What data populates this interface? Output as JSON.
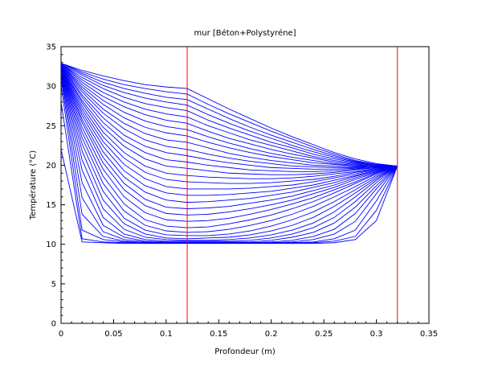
{
  "chart_data": {
    "type": "line",
    "title": "mur [Béton+Polystyréne]",
    "xlabel": "Profondeur (m)",
    "ylabel": "Température (°C)",
    "xlim": [
      0,
      0.35
    ],
    "ylim": [
      0,
      35
    ],
    "x_ticks": [
      "0",
      "0.05",
      "0.1",
      "0.15",
      "0.2",
      "0.25",
      "0.3",
      "0.35"
    ],
    "y_ticks": [
      "0",
      "5",
      "10",
      "15",
      "20",
      "25",
      "30",
      "35"
    ],
    "grid": false,
    "legend": "none",
    "series_color": "#0000ff",
    "vertical_lines": [
      {
        "x": 0.12,
        "color": "#ff0000"
      },
      {
        "x": 0.32,
        "color": "#ff0000"
      }
    ],
    "series_count": 34,
    "x_points": [
      0,
      0.02,
      0.04,
      0.06,
      0.08,
      0.1,
      0.12,
      0.14,
      0.16,
      0.18,
      0.2,
      0.22,
      0.24,
      0.26,
      0.28,
      0.3,
      0.32
    ],
    "series": [
      {
        "values": [
          32.9,
          32.0,
          31.3,
          30.7,
          30.2,
          29.9,
          29.7,
          28.4,
          27.1,
          25.9,
          24.7,
          23.6,
          22.6,
          21.6,
          20.8,
          20.2,
          19.9
        ]
      },
      {
        "values": [
          32.9,
          31.8,
          30.9,
          30.2,
          29.7,
          29.3,
          29.0,
          27.7,
          26.5,
          25.4,
          24.3,
          23.3,
          22.3,
          21.4,
          20.6,
          20.1,
          19.9
        ]
      },
      {
        "values": [
          32.9,
          31.6,
          30.5,
          29.7,
          29.1,
          28.6,
          28.3,
          27.1,
          25.9,
          24.8,
          23.8,
          22.9,
          22.0,
          21.2,
          20.5,
          20.1,
          19.9
        ]
      },
      {
        "values": [
          32.8,
          31.4,
          30.1,
          29.2,
          28.5,
          28.0,
          27.6,
          26.4,
          25.3,
          24.3,
          23.4,
          22.5,
          21.7,
          21.0,
          20.4,
          20.0,
          19.9
        ]
      },
      {
        "values": [
          32.8,
          31.1,
          29.7,
          28.6,
          27.8,
          27.3,
          26.9,
          25.7,
          24.7,
          23.8,
          22.9,
          22.2,
          21.4,
          20.8,
          20.3,
          20.0,
          19.9
        ]
      },
      {
        "values": [
          32.8,
          30.8,
          29.2,
          28.0,
          27.1,
          26.5,
          26.1,
          25.0,
          24.1,
          23.2,
          22.5,
          21.8,
          21.1,
          20.6,
          20.2,
          20.0,
          19.9
        ]
      },
      {
        "values": [
          32.8,
          30.5,
          28.7,
          27.4,
          26.4,
          25.7,
          25.3,
          24.3,
          23.4,
          22.7,
          22.0,
          21.4,
          20.9,
          20.4,
          20.1,
          19.9,
          19.9
        ]
      },
      {
        "values": [
          32.7,
          30.2,
          28.2,
          26.7,
          25.6,
          24.9,
          24.5,
          23.6,
          22.8,
          22.1,
          21.5,
          21.0,
          20.6,
          20.2,
          20.0,
          19.9,
          19.9
        ]
      },
      {
        "values": [
          32.7,
          29.9,
          27.7,
          26.0,
          24.8,
          24.1,
          23.7,
          22.9,
          22.2,
          21.6,
          21.1,
          20.7,
          20.3,
          20.1,
          19.9,
          19.9,
          19.9
        ]
      },
      {
        "values": [
          32.7,
          29.6,
          27.1,
          25.3,
          24.0,
          23.2,
          22.9,
          22.2,
          21.5,
          21.0,
          20.6,
          20.3,
          20.0,
          19.9,
          19.8,
          19.9,
          19.9
        ]
      },
      {
        "values": [
          32.6,
          29.3,
          26.6,
          24.6,
          23.2,
          22.4,
          22.0,
          21.4,
          20.9,
          20.5,
          20.2,
          19.9,
          19.8,
          19.7,
          19.7,
          19.8,
          19.9
        ]
      },
      {
        "values": [
          32.6,
          28.9,
          26.0,
          23.8,
          22.4,
          21.6,
          21.2,
          20.7,
          20.3,
          20.0,
          19.7,
          19.6,
          19.5,
          19.5,
          19.6,
          19.8,
          19.9
        ]
      },
      {
        "values": [
          32.6,
          28.6,
          25.4,
          23.1,
          21.6,
          20.7,
          20.4,
          20.0,
          19.7,
          19.4,
          19.3,
          19.2,
          19.2,
          19.3,
          19.5,
          19.7,
          19.9
        ]
      },
      {
        "values": [
          32.5,
          28.2,
          24.8,
          22.4,
          20.8,
          19.9,
          19.6,
          19.3,
          19.0,
          18.9,
          18.8,
          18.8,
          18.9,
          19.1,
          19.4,
          19.7,
          19.9
        ]
      },
      {
        "values": [
          32.5,
          27.9,
          24.2,
          21.6,
          19.9,
          19.0,
          18.7,
          18.5,
          18.4,
          18.3,
          18.3,
          18.4,
          18.6,
          18.9,
          19.2,
          19.6,
          19.9
        ]
      },
      {
        "values": [
          32.5,
          27.5,
          23.6,
          20.9,
          19.1,
          18.2,
          17.9,
          17.8,
          17.7,
          17.7,
          17.8,
          18.0,
          18.2,
          18.6,
          19.1,
          19.5,
          19.9
        ]
      },
      {
        "values": [
          32.4,
          27.1,
          23.0,
          20.1,
          18.3,
          17.3,
          17.0,
          17.0,
          17.0,
          17.1,
          17.3,
          17.5,
          17.9,
          18.4,
          18.9,
          19.5,
          19.9
        ]
      },
      {
        "values": [
          32.4,
          26.7,
          22.4,
          19.3,
          17.4,
          16.5,
          16.2,
          16.2,
          16.3,
          16.5,
          16.7,
          17.1,
          17.5,
          18.1,
          18.7,
          19.4,
          19.9
        ]
      },
      {
        "values": [
          32.3,
          26.3,
          21.7,
          18.5,
          16.6,
          15.6,
          15.3,
          15.4,
          15.6,
          15.8,
          16.2,
          16.6,
          17.2,
          17.8,
          18.6,
          19.3,
          19.9
        ]
      },
      {
        "values": [
          32.3,
          25.8,
          21.0,
          17.7,
          15.7,
          14.7,
          14.5,
          14.6,
          14.8,
          15.2,
          15.6,
          16.1,
          16.8,
          17.5,
          18.4,
          19.2,
          19.9
        ]
      },
      {
        "values": [
          32.2,
          25.4,
          20.3,
          16.9,
          14.9,
          13.9,
          13.7,
          13.8,
          14.1,
          14.5,
          15.0,
          15.6,
          16.4,
          17.2,
          18.2,
          19.1,
          19.9
        ]
      },
      {
        "values": [
          32.2,
          24.8,
          19.5,
          16.0,
          14.0,
          13.1,
          12.9,
          13.0,
          13.3,
          13.8,
          14.4,
          15.1,
          15.9,
          16.9,
          17.9,
          19.0,
          19.9
        ]
      },
      {
        "values": [
          32.1,
          24.2,
          18.6,
          15.1,
          13.1,
          12.3,
          12.1,
          12.2,
          12.6,
          13.1,
          13.7,
          14.5,
          15.4,
          16.5,
          17.7,
          18.9,
          19.9
        ]
      },
      {
        "values": [
          32.1,
          23.5,
          17.7,
          14.2,
          12.4,
          11.7,
          11.5,
          11.6,
          11.9,
          12.4,
          13.0,
          13.8,
          14.8,
          16.0,
          17.3,
          18.7,
          19.9
        ]
      },
      {
        "values": [
          32.0,
          22.7,
          16.7,
          13.3,
          11.8,
          11.2,
          11.1,
          11.1,
          11.3,
          11.7,
          12.3,
          13.1,
          14.1,
          15.4,
          16.9,
          18.5,
          19.9
        ]
      },
      {
        "values": [
          31.9,
          21.8,
          15.6,
          12.6,
          11.3,
          10.8,
          10.7,
          10.8,
          10.9,
          11.2,
          11.7,
          12.4,
          13.4,
          14.8,
          16.5,
          18.3,
          19.9
        ]
      },
      {
        "values": [
          31.8,
          20.7,
          14.5,
          11.9,
          10.9,
          10.6,
          10.5,
          10.5,
          10.6,
          10.8,
          11.2,
          11.8,
          12.7,
          14.1,
          16.0,
          18.1,
          19.9
        ]
      },
      {
        "values": [
          31.7,
          19.4,
          13.4,
          11.3,
          10.6,
          10.4,
          10.4,
          10.4,
          10.4,
          10.5,
          10.8,
          11.3,
          12.1,
          13.4,
          15.4,
          17.8,
          19.9
        ]
      },
      {
        "values": [
          31.5,
          17.8,
          12.4,
          10.9,
          10.4,
          10.3,
          10.3,
          10.3,
          10.3,
          10.3,
          10.5,
          10.9,
          11.5,
          12.7,
          14.7,
          17.4,
          19.9
        ]
      },
      {
        "values": [
          31.3,
          15.9,
          11.6,
          10.6,
          10.3,
          10.2,
          10.2,
          10.2,
          10.2,
          10.2,
          10.3,
          10.5,
          11.0,
          11.9,
          13.9,
          17.0,
          19.9
        ]
      },
      {
        "values": [
          30.9,
          13.8,
          11.0,
          10.4,
          10.2,
          10.2,
          10.2,
          10.2,
          10.2,
          10.2,
          10.2,
          10.3,
          10.6,
          11.3,
          12.9,
          16.4,
          19.9
        ]
      },
      {
        "values": [
          30.1,
          11.8,
          10.6,
          10.3,
          10.2,
          10.2,
          10.2,
          10.2,
          10.2,
          10.2,
          10.2,
          10.2,
          10.3,
          10.7,
          11.8,
          15.5,
          19.9
        ]
      },
      {
        "values": [
          28.0,
          10.7,
          10.3,
          10.2,
          10.2,
          10.2,
          10.2,
          10.2,
          10.2,
          10.2,
          10.2,
          10.2,
          10.2,
          10.4,
          11.0,
          14.3,
          19.9
        ]
      },
      {
        "values": [
          22.0,
          10.3,
          10.2,
          10.1,
          10.1,
          10.1,
          10.1,
          10.1,
          10.1,
          10.1,
          10.1,
          10.1,
          10.1,
          10.2,
          10.6,
          13.0,
          19.9
        ]
      }
    ]
  }
}
